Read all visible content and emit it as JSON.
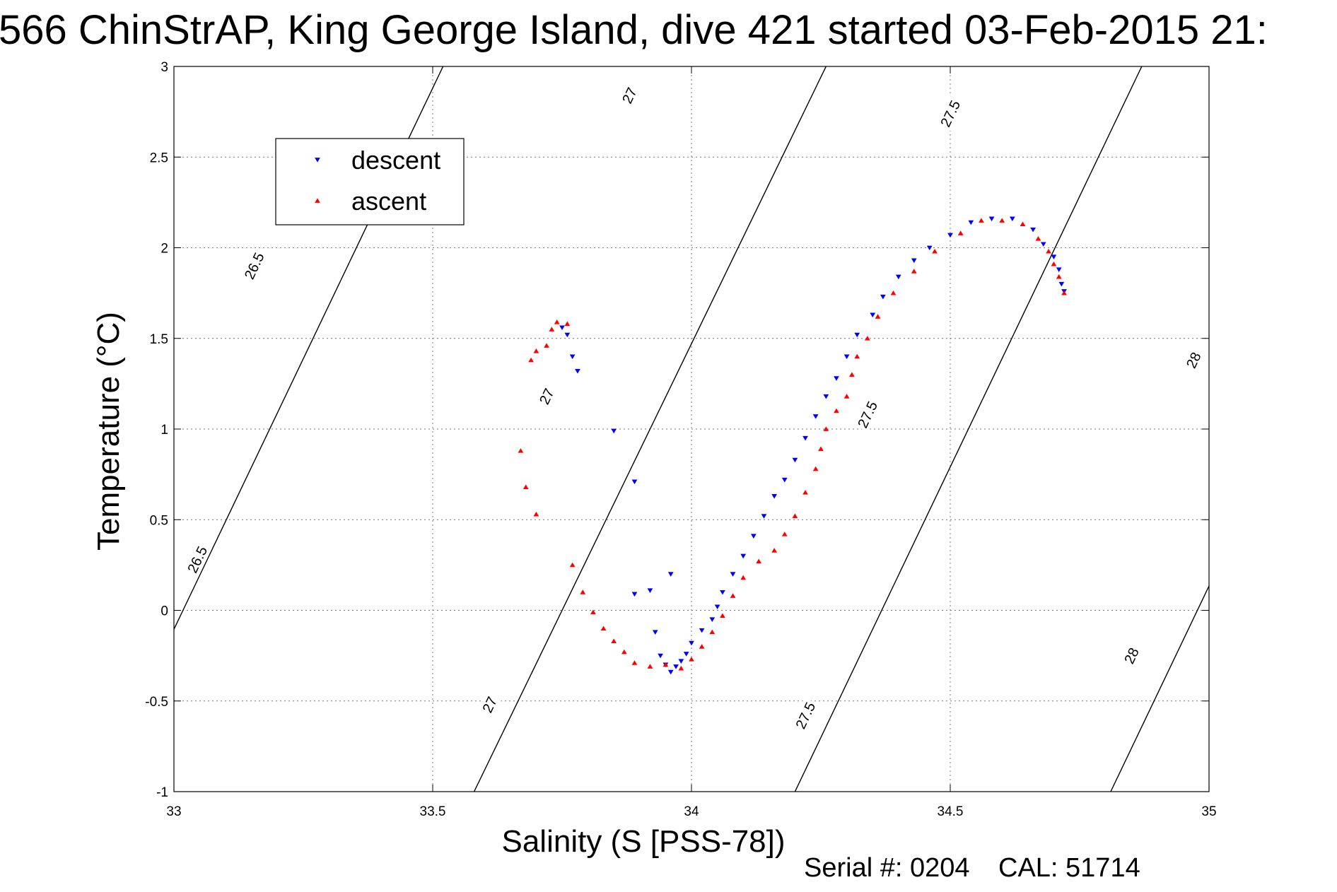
{
  "chart_data": {
    "type": "scatter",
    "title": "566 ChinStrAP, King George Island, dive 421 started 03-Feb-2015 21:",
    "xlabel": "Salinity (S [PSS-78])",
    "ylabel": "Temperature (°C)",
    "xlim": [
      33,
      35
    ],
    "ylim": [
      -1,
      3
    ],
    "xticks": [
      33,
      33.5,
      34,
      34.5,
      35
    ],
    "xtick_labels": [
      "33",
      "33.5",
      "34",
      "34.5",
      "35"
    ],
    "yticks": [
      -1,
      -0.5,
      0,
      0.5,
      1,
      1.5,
      2,
      2.5,
      3
    ],
    "ytick_labels": [
      "-1",
      "-0.5",
      "0",
      "0.5",
      "1",
      "1.5",
      "2",
      "2.5",
      "3"
    ],
    "grid": true,
    "legend_position": "top-left",
    "series": [
      {
        "name": "descent",
        "color": "#0000ff",
        "marker": "triangle-down",
        "points": [
          [
            33.75,
            1.56
          ],
          [
            33.76,
            1.52
          ],
          [
            33.77,
            1.4
          ],
          [
            33.78,
            1.32
          ],
          [
            33.85,
            0.99
          ],
          [
            33.89,
            0.71
          ],
          [
            33.89,
            0.09
          ],
          [
            33.92,
            0.11
          ],
          [
            33.96,
            0.2
          ],
          [
            33.93,
            -0.12
          ],
          [
            33.94,
            -0.25
          ],
          [
            33.95,
            -0.3
          ],
          [
            33.96,
            -0.34
          ],
          [
            33.97,
            -0.31
          ],
          [
            33.98,
            -0.28
          ],
          [
            33.99,
            -0.24
          ],
          [
            34.0,
            -0.18
          ],
          [
            34.02,
            -0.11
          ],
          [
            34.04,
            -0.05
          ],
          [
            34.05,
            0.02
          ],
          [
            34.06,
            0.1
          ],
          [
            34.08,
            0.2
          ],
          [
            34.1,
            0.3
          ],
          [
            34.12,
            0.41
          ],
          [
            34.14,
            0.52
          ],
          [
            34.16,
            0.63
          ],
          [
            34.18,
            0.72
          ],
          [
            34.2,
            0.83
          ],
          [
            34.22,
            0.95
          ],
          [
            34.24,
            1.07
          ],
          [
            34.26,
            1.18
          ],
          [
            34.28,
            1.28
          ],
          [
            34.3,
            1.4
          ],
          [
            34.32,
            1.52
          ],
          [
            34.35,
            1.63
          ],
          [
            34.37,
            1.73
          ],
          [
            34.4,
            1.84
          ],
          [
            34.43,
            1.93
          ],
          [
            34.46,
            2.0
          ],
          [
            34.5,
            2.07
          ],
          [
            34.54,
            2.14
          ],
          [
            34.58,
            2.16
          ],
          [
            34.62,
            2.16
          ],
          [
            34.66,
            2.1
          ],
          [
            34.68,
            2.02
          ],
          [
            34.7,
            1.95
          ],
          [
            34.71,
            1.88
          ],
          [
            34.715,
            1.8
          ],
          [
            34.72,
            1.76
          ]
        ]
      },
      {
        "name": "ascent",
        "color": "#ff0000",
        "marker": "triangle-up",
        "points": [
          [
            33.74,
            1.59
          ],
          [
            33.76,
            1.58
          ],
          [
            33.73,
            1.55
          ],
          [
            33.72,
            1.46
          ],
          [
            33.7,
            1.43
          ],
          [
            33.69,
            1.38
          ],
          [
            33.67,
            0.88
          ],
          [
            33.68,
            0.68
          ],
          [
            33.7,
            0.53
          ],
          [
            33.77,
            0.25
          ],
          [
            33.79,
            0.1
          ],
          [
            33.81,
            -0.01
          ],
          [
            33.83,
            -0.1
          ],
          [
            33.85,
            -0.17
          ],
          [
            33.87,
            -0.23
          ],
          [
            33.89,
            -0.29
          ],
          [
            33.92,
            -0.31
          ],
          [
            33.95,
            -0.3
          ],
          [
            33.98,
            -0.32
          ],
          [
            34.0,
            -0.27
          ],
          [
            34.02,
            -0.2
          ],
          [
            34.04,
            -0.12
          ],
          [
            34.06,
            -0.03
          ],
          [
            34.08,
            0.08
          ],
          [
            34.1,
            0.18
          ],
          [
            34.13,
            0.27
          ],
          [
            34.16,
            0.33
          ],
          [
            34.18,
            0.42
          ],
          [
            34.2,
            0.52
          ],
          [
            34.22,
            0.65
          ],
          [
            34.24,
            0.78
          ],
          [
            34.25,
            0.89
          ],
          [
            34.26,
            1.0
          ],
          [
            34.28,
            1.1
          ],
          [
            34.3,
            1.18
          ],
          [
            34.31,
            1.3
          ],
          [
            34.32,
            1.4
          ],
          [
            34.34,
            1.5
          ],
          [
            34.36,
            1.62
          ],
          [
            34.39,
            1.75
          ],
          [
            34.43,
            1.87
          ],
          [
            34.47,
            1.98
          ],
          [
            34.52,
            2.08
          ],
          [
            34.56,
            2.15
          ],
          [
            34.6,
            2.15
          ],
          [
            34.64,
            2.13
          ],
          [
            34.67,
            2.05
          ],
          [
            34.69,
            1.98
          ],
          [
            34.7,
            1.91
          ],
          [
            34.71,
            1.84
          ],
          [
            34.72,
            1.75
          ]
        ]
      }
    ],
    "isopycnals": [
      {
        "label": "26.5",
        "x_bottom": 32.85,
        "x_top": 33.52,
        "label_positions": [
          [
            33.155,
            1.9
          ],
          [
            33.045,
            0.28
          ]
        ]
      },
      {
        "label": "27",
        "x_bottom": 33.58,
        "x_top": 34.26,
        "label_positions": [
          [
            33.88,
            2.84
          ],
          [
            33.72,
            1.18
          ],
          [
            33.61,
            -0.52
          ]
        ]
      },
      {
        "label": "27.5",
        "x_bottom": 34.2,
        "x_top": 34.87,
        "label_positions": [
          [
            34.5,
            2.74
          ],
          [
            34.34,
            1.08
          ],
          [
            34.22,
            -0.58
          ]
        ]
      },
      {
        "label": "28",
        "x_bottom": 34.81,
        "x_top": 35.48,
        "label_positions": [
          [
            34.97,
            1.38
          ],
          [
            34.85,
            -0.25
          ]
        ]
      }
    ]
  },
  "footer": {
    "serial_text": "Serial #: 0204",
    "cal_text": "CAL: 51714"
  }
}
